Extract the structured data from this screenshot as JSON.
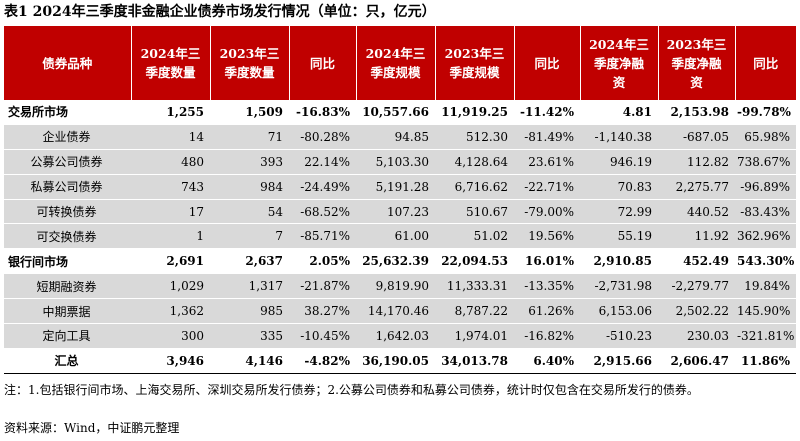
{
  "title": "表1    2024年三季度非金融企业债券市场发行情况（单位：只，亿元）",
  "colors": {
    "header_bg": "#c00000",
    "header_text": "#ffffff",
    "sub_row_bg": "#d9d9d9"
  },
  "headers": [
    [
      "债券品种"
    ],
    [
      "2024年三",
      "季度数量"
    ],
    [
      "2023年三",
      "季度数量"
    ],
    [
      "同比"
    ],
    [
      "2024年三",
      "季度规模"
    ],
    [
      "2023年三",
      "季度规模"
    ],
    [
      "同比"
    ],
    [
      "2024年三",
      "季度净融",
      "资"
    ],
    [
      "2023年三",
      "季度净融",
      "资"
    ],
    [
      "同比"
    ]
  ],
  "rows": [
    {
      "type": "group",
      "cells": [
        "交易所市场",
        "1,255",
        "1,509",
        "-16.83%",
        "10,557.66",
        "11,919.25",
        "-11.42%",
        "4.81",
        "2,153.98",
        "-99.78%"
      ]
    },
    {
      "type": "sub",
      "cells": [
        "企业债券",
        "14",
        "71",
        "-80.28%",
        "94.85",
        "512.30",
        "-81.49%",
        "-1,140.38",
        "-687.05",
        "65.98%"
      ]
    },
    {
      "type": "sub",
      "cells": [
        "公募公司债券",
        "480",
        "393",
        "22.14%",
        "5,103.30",
        "4,128.64",
        "23.61%",
        "946.19",
        "112.82",
        "738.67%"
      ]
    },
    {
      "type": "sub",
      "cells": [
        "私募公司债券",
        "743",
        "984",
        "-24.49%",
        "5,191.28",
        "6,716.62",
        "-22.71%",
        "70.83",
        "2,275.77",
        "-96.89%"
      ]
    },
    {
      "type": "sub",
      "cells": [
        "可转换债券",
        "17",
        "54",
        "-68.52%",
        "107.23",
        "510.67",
        "-79.00%",
        "72.99",
        "440.52",
        "-83.43%"
      ]
    },
    {
      "type": "sub",
      "cells": [
        "可交换债券",
        "1",
        "7",
        "-85.71%",
        "61.00",
        "51.02",
        "19.56%",
        "55.19",
        "11.92",
        "362.96%"
      ]
    },
    {
      "type": "group",
      "cells": [
        "银行间市场",
        "2,691",
        "2,637",
        "2.05%",
        "25,632.39",
        "22,094.53",
        "16.01%",
        "2,910.85",
        "452.49",
        "543.30%"
      ]
    },
    {
      "type": "sub",
      "cells": [
        "短期融资券",
        "1,029",
        "1,317",
        "-21.87%",
        "9,819.90",
        "11,333.31",
        "-13.35%",
        "-2,731.98",
        "-2,279.77",
        "19.84%"
      ]
    },
    {
      "type": "sub",
      "cells": [
        "中期票据",
        "1,362",
        "985",
        "38.27%",
        "14,170.46",
        "8,787.22",
        "61.26%",
        "6,153.06",
        "2,502.22",
        "145.90%"
      ]
    },
    {
      "type": "sub",
      "cells": [
        "定向工具",
        "300",
        "335",
        "-10.45%",
        "1,642.03",
        "1,974.01",
        "-16.82%",
        "-510.23",
        "230.03",
        "-321.81%"
      ]
    },
    {
      "type": "total",
      "cells": [
        "汇总",
        "3,946",
        "4,146",
        "-4.82%",
        "36,190.05",
        "34,013.78",
        "6.40%",
        "2,915.66",
        "2,606.47",
        "11.86%"
      ]
    }
  ],
  "note": "注：1.包括银行间市场、上海交易所、深圳交易所发行债券；2.公募公司债券和私募公司债券，统计时仅包含在交易所发行的债券。",
  "source": "资料来源：Wind，中证鹏元整理"
}
